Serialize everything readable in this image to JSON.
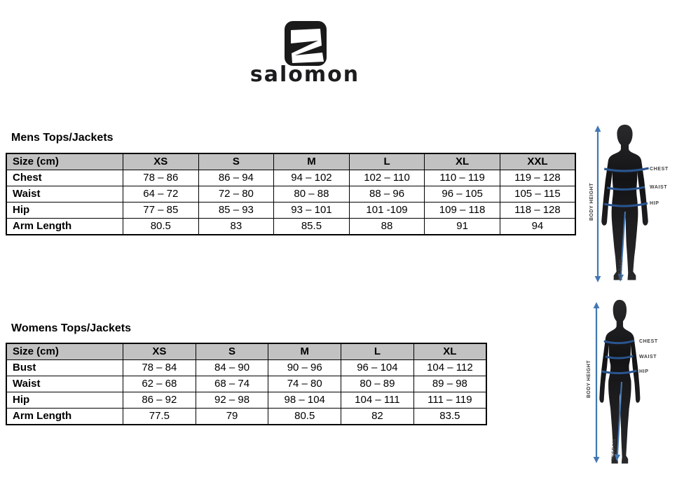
{
  "brand": {
    "wordmark": "salomon"
  },
  "mens_table": {
    "title": "Mens Tops/Jackets",
    "columns": [
      "Size (cm)",
      "XS",
      "S",
      "M",
      "L",
      "XL",
      "XXL"
    ],
    "rows": [
      {
        "label": "Chest",
        "values": [
          "78 – 86",
          "86 – 94",
          "94 – 102",
          "102 – 110",
          "110 – 119",
          "119 – 128"
        ]
      },
      {
        "label": "Waist",
        "values": [
          "64 – 72",
          "72 – 80",
          "80 – 88",
          "88 – 96",
          "96 – 105",
          "105 – 115"
        ]
      },
      {
        "label": "Hip",
        "values": [
          "77 – 85",
          "85 – 93",
          "93 – 101",
          "101 -109",
          "109 – 118",
          "118 – 128"
        ]
      },
      {
        "label": "Arm Length",
        "values": [
          "80.5",
          "83",
          "85.5",
          "88",
          "91",
          "94"
        ]
      }
    ]
  },
  "womens_table": {
    "title": "Womens Tops/Jackets",
    "columns": [
      "Size (cm)",
      "XS",
      "S",
      "M",
      "L",
      "XL"
    ],
    "rows": [
      {
        "label": "Bust",
        "values": [
          "78 – 84",
          "84 – 90",
          "90 – 96",
          "96 – 104",
          "104 – 112"
        ]
      },
      {
        "label": "Waist",
        "values": [
          "62 – 68",
          "68 – 74",
          "74 – 80",
          "80 – 89",
          "89 – 98"
        ]
      },
      {
        "label": "Hip",
        "values": [
          "86 – 92",
          "92 – 98",
          "98 – 104",
          "104 – 111",
          "111 – 119"
        ]
      },
      {
        "label": "Arm Length",
        "values": [
          "77.5",
          "79",
          "80.5",
          "82",
          "83.5"
        ]
      }
    ]
  },
  "figure_labels": {
    "chest": "CHEST",
    "waist": "WAIST",
    "hip": "HIP",
    "body_height": "BODY HEIGHT",
    "inseam": "INSEAM"
  },
  "colors": {
    "table_header_bg": "#c2c2c2",
    "table_border": "#000000",
    "measurement_line": "#2a5590",
    "arrow_blue": "#4377b3",
    "silhouette": "#1b1b1d",
    "logo": "#1a1a1a"
  }
}
